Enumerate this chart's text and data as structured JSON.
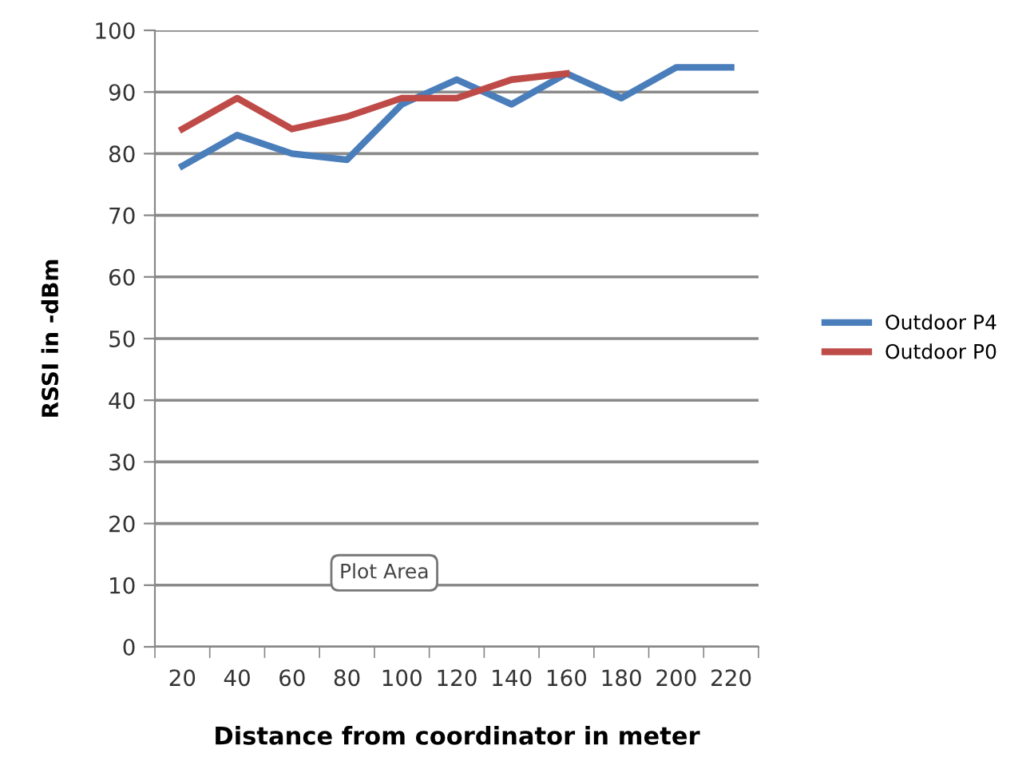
{
  "chart_data": {
    "type": "line",
    "xlabel": "Distance from coordinator in meter",
    "ylabel": "RSSI in -dBm",
    "categories": [
      "20",
      "40",
      "60",
      "80",
      "100",
      "120",
      "140",
      "160",
      "180",
      "200",
      "220"
    ],
    "series": [
      {
        "name": "Outdoor P4",
        "color": "#4a7ebb",
        "values": [
          78,
          83,
          80,
          79,
          88,
          92,
          88,
          93,
          89,
          94,
          94
        ]
      },
      {
        "name": "Outdoor P0",
        "color": "#be4b48",
        "values": [
          84,
          89,
          84,
          86,
          89,
          89,
          92,
          93,
          null,
          null,
          null
        ]
      }
    ],
    "ylim": [
      0,
      100
    ],
    "yticks": [
      0,
      10,
      20,
      30,
      40,
      50,
      60,
      70,
      80,
      90,
      100
    ],
    "grid": "y",
    "legend": "right",
    "marker": "none",
    "annotations": [
      "Plot Area"
    ]
  }
}
